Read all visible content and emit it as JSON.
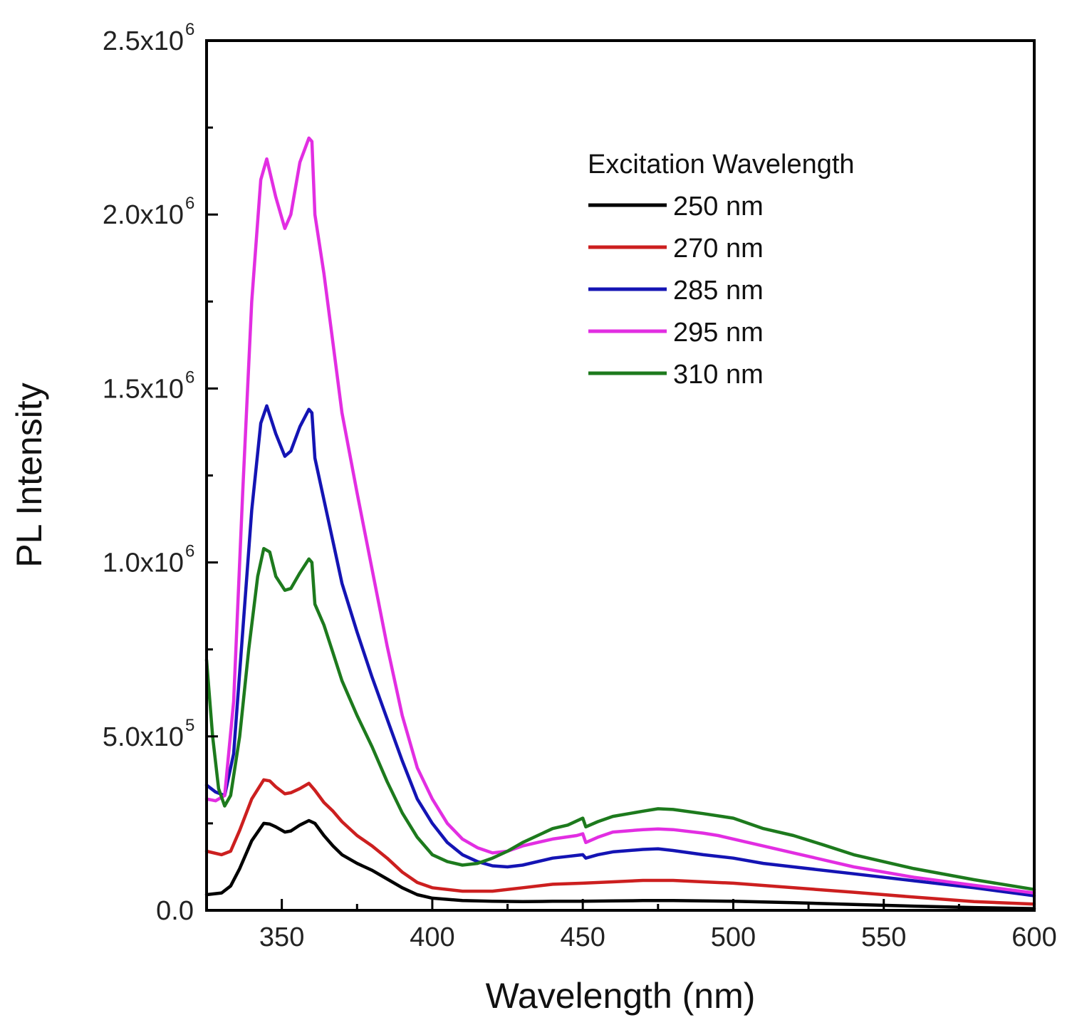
{
  "chart_data": {
    "type": "line",
    "title": "",
    "xlabel": "Wavelength (nm)",
    "ylabel": "PL Intensity",
    "xlim": [
      325,
      600
    ],
    "ylim": [
      0,
      2500000
    ],
    "grid": false,
    "x_ticks": [
      {
        "value": 350,
        "label": "350"
      },
      {
        "value": 400,
        "label": "400"
      },
      {
        "value": 450,
        "label": "450"
      },
      {
        "value": 500,
        "label": "500"
      },
      {
        "value": 550,
        "label": "550"
      },
      {
        "value": 600,
        "label": "600"
      }
    ],
    "y_ticks": [
      {
        "value": 0,
        "mantissa": "0.0",
        "exp": ""
      },
      {
        "value": 500000,
        "mantissa": "5.0x10",
        "exp": "5"
      },
      {
        "value": 1000000,
        "mantissa": "1.0x10",
        "exp": "6"
      },
      {
        "value": 1500000,
        "mantissa": "1.5x10",
        "exp": "6"
      },
      {
        "value": 2000000,
        "mantissa": "2.0x10",
        "exp": "6"
      },
      {
        "value": 2500000,
        "mantissa": "2.5x10",
        "exp": "6"
      }
    ],
    "legend": {
      "title": "Excitation Wavelength",
      "placement": "top-right"
    },
    "series": [
      {
        "name": "250 nm",
        "color": "#000000",
        "points": [
          [
            325,
            45000
          ],
          [
            330,
            50000
          ],
          [
            333,
            70000
          ],
          [
            336,
            120000
          ],
          [
            340,
            200000
          ],
          [
            344,
            250000
          ],
          [
            346,
            248000
          ],
          [
            348,
            240000
          ],
          [
            351,
            225000
          ],
          [
            353,
            228000
          ],
          [
            356,
            245000
          ],
          [
            359,
            258000
          ],
          [
            361,
            250000
          ],
          [
            364,
            215000
          ],
          [
            367,
            185000
          ],
          [
            370,
            160000
          ],
          [
            375,
            135000
          ],
          [
            380,
            115000
          ],
          [
            385,
            90000
          ],
          [
            390,
            65000
          ],
          [
            395,
            45000
          ],
          [
            400,
            35000
          ],
          [
            410,
            28000
          ],
          [
            420,
            26000
          ],
          [
            430,
            25000
          ],
          [
            440,
            26000
          ],
          [
            450,
            26000
          ],
          [
            460,
            27000
          ],
          [
            470,
            28000
          ],
          [
            480,
            28000
          ],
          [
            490,
            27000
          ],
          [
            500,
            26000
          ],
          [
            520,
            22000
          ],
          [
            540,
            17000
          ],
          [
            560,
            12000
          ],
          [
            580,
            8000
          ],
          [
            600,
            5000
          ]
        ]
      },
      {
        "name": "270 nm",
        "color": "#cc1f1f",
        "points": [
          [
            325,
            170000
          ],
          [
            330,
            160000
          ],
          [
            333,
            170000
          ],
          [
            336,
            230000
          ],
          [
            340,
            320000
          ],
          [
            344,
            375000
          ],
          [
            346,
            372000
          ],
          [
            348,
            355000
          ],
          [
            351,
            335000
          ],
          [
            353,
            338000
          ],
          [
            356,
            350000
          ],
          [
            359,
            365000
          ],
          [
            361,
            345000
          ],
          [
            364,
            310000
          ],
          [
            367,
            285000
          ],
          [
            370,
            255000
          ],
          [
            375,
            215000
          ],
          [
            380,
            185000
          ],
          [
            385,
            150000
          ],
          [
            390,
            110000
          ],
          [
            395,
            80000
          ],
          [
            400,
            65000
          ],
          [
            410,
            55000
          ],
          [
            420,
            55000
          ],
          [
            430,
            65000
          ],
          [
            440,
            75000
          ],
          [
            450,
            78000
          ],
          [
            460,
            82000
          ],
          [
            470,
            86000
          ],
          [
            480,
            86000
          ],
          [
            490,
            82000
          ],
          [
            500,
            78000
          ],
          [
            520,
            65000
          ],
          [
            540,
            52000
          ],
          [
            560,
            38000
          ],
          [
            580,
            25000
          ],
          [
            600,
            18000
          ]
        ]
      },
      {
        "name": "285 nm",
        "color": "#1414b4",
        "points": [
          [
            325,
            360000
          ],
          [
            328,
            340000
          ],
          [
            331,
            330000
          ],
          [
            334,
            450000
          ],
          [
            337,
            800000
          ],
          [
            340,
            1150000
          ],
          [
            343,
            1400000
          ],
          [
            345,
            1450000
          ],
          [
            348,
            1370000
          ],
          [
            351,
            1305000
          ],
          [
            353,
            1320000
          ],
          [
            356,
            1390000
          ],
          [
            359,
            1440000
          ],
          [
            360,
            1430000
          ],
          [
            361,
            1300000
          ],
          [
            364,
            1180000
          ],
          [
            367,
            1060000
          ],
          [
            370,
            940000
          ],
          [
            375,
            800000
          ],
          [
            380,
            670000
          ],
          [
            385,
            550000
          ],
          [
            390,
            430000
          ],
          [
            395,
            320000
          ],
          [
            400,
            250000
          ],
          [
            405,
            195000
          ],
          [
            410,
            160000
          ],
          [
            415,
            140000
          ],
          [
            420,
            128000
          ],
          [
            425,
            125000
          ],
          [
            430,
            130000
          ],
          [
            440,
            150000
          ],
          [
            445,
            155000
          ],
          [
            450,
            160000
          ],
          [
            451,
            150000
          ],
          [
            455,
            160000
          ],
          [
            460,
            168000
          ],
          [
            470,
            175000
          ],
          [
            475,
            177000
          ],
          [
            480,
            172000
          ],
          [
            490,
            160000
          ],
          [
            500,
            150000
          ],
          [
            510,
            135000
          ],
          [
            520,
            125000
          ],
          [
            540,
            105000
          ],
          [
            560,
            85000
          ],
          [
            580,
            65000
          ],
          [
            600,
            42000
          ]
        ]
      },
      {
        "name": "295 nm",
        "color": "#e22ee2",
        "points": [
          [
            325,
            320000
          ],
          [
            328,
            315000
          ],
          [
            331,
            330000
          ],
          [
            334,
            600000
          ],
          [
            337,
            1200000
          ],
          [
            340,
            1750000
          ],
          [
            343,
            2100000
          ],
          [
            345,
            2160000
          ],
          [
            348,
            2050000
          ],
          [
            351,
            1960000
          ],
          [
            353,
            2000000
          ],
          [
            356,
            2150000
          ],
          [
            359,
            2220000
          ],
          [
            360,
            2210000
          ],
          [
            361,
            2000000
          ],
          [
            364,
            1830000
          ],
          [
            367,
            1630000
          ],
          [
            370,
            1430000
          ],
          [
            375,
            1200000
          ],
          [
            380,
            980000
          ],
          [
            385,
            760000
          ],
          [
            390,
            560000
          ],
          [
            395,
            410000
          ],
          [
            400,
            320000
          ],
          [
            405,
            250000
          ],
          [
            410,
            205000
          ],
          [
            415,
            180000
          ],
          [
            420,
            165000
          ],
          [
            425,
            170000
          ],
          [
            430,
            185000
          ],
          [
            440,
            205000
          ],
          [
            448,
            215000
          ],
          [
            450,
            220000
          ],
          [
            451,
            195000
          ],
          [
            455,
            210000
          ],
          [
            460,
            225000
          ],
          [
            470,
            232000
          ],
          [
            475,
            234000
          ],
          [
            480,
            232000
          ],
          [
            490,
            222000
          ],
          [
            495,
            215000
          ],
          [
            500,
            205000
          ],
          [
            520,
            165000
          ],
          [
            540,
            125000
          ],
          [
            560,
            95000
          ],
          [
            580,
            72000
          ],
          [
            600,
            50000
          ]
        ]
      },
      {
        "name": "310 nm",
        "color": "#1d7a1d",
        "points": [
          [
            325,
            720000
          ],
          [
            327,
            500000
          ],
          [
            329,
            350000
          ],
          [
            331,
            300000
          ],
          [
            333,
            330000
          ],
          [
            336,
            500000
          ],
          [
            339,
            750000
          ],
          [
            342,
            960000
          ],
          [
            344,
            1040000
          ],
          [
            346,
            1030000
          ],
          [
            348,
            960000
          ],
          [
            351,
            920000
          ],
          [
            353,
            925000
          ],
          [
            356,
            970000
          ],
          [
            359,
            1010000
          ],
          [
            360,
            1000000
          ],
          [
            361,
            880000
          ],
          [
            364,
            820000
          ],
          [
            367,
            740000
          ],
          [
            370,
            660000
          ],
          [
            375,
            560000
          ],
          [
            380,
            470000
          ],
          [
            385,
            370000
          ],
          [
            390,
            280000
          ],
          [
            395,
            210000
          ],
          [
            400,
            160000
          ],
          [
            405,
            140000
          ],
          [
            410,
            130000
          ],
          [
            415,
            135000
          ],
          [
            420,
            150000
          ],
          [
            425,
            170000
          ],
          [
            430,
            195000
          ],
          [
            440,
            235000
          ],
          [
            445,
            245000
          ],
          [
            450,
            265000
          ],
          [
            451,
            240000
          ],
          [
            455,
            255000
          ],
          [
            460,
            270000
          ],
          [
            470,
            285000
          ],
          [
            475,
            292000
          ],
          [
            480,
            290000
          ],
          [
            490,
            278000
          ],
          [
            500,
            265000
          ],
          [
            510,
            235000
          ],
          [
            520,
            215000
          ],
          [
            530,
            188000
          ],
          [
            540,
            160000
          ],
          [
            560,
            120000
          ],
          [
            580,
            88000
          ],
          [
            600,
            60000
          ]
        ]
      }
    ]
  }
}
